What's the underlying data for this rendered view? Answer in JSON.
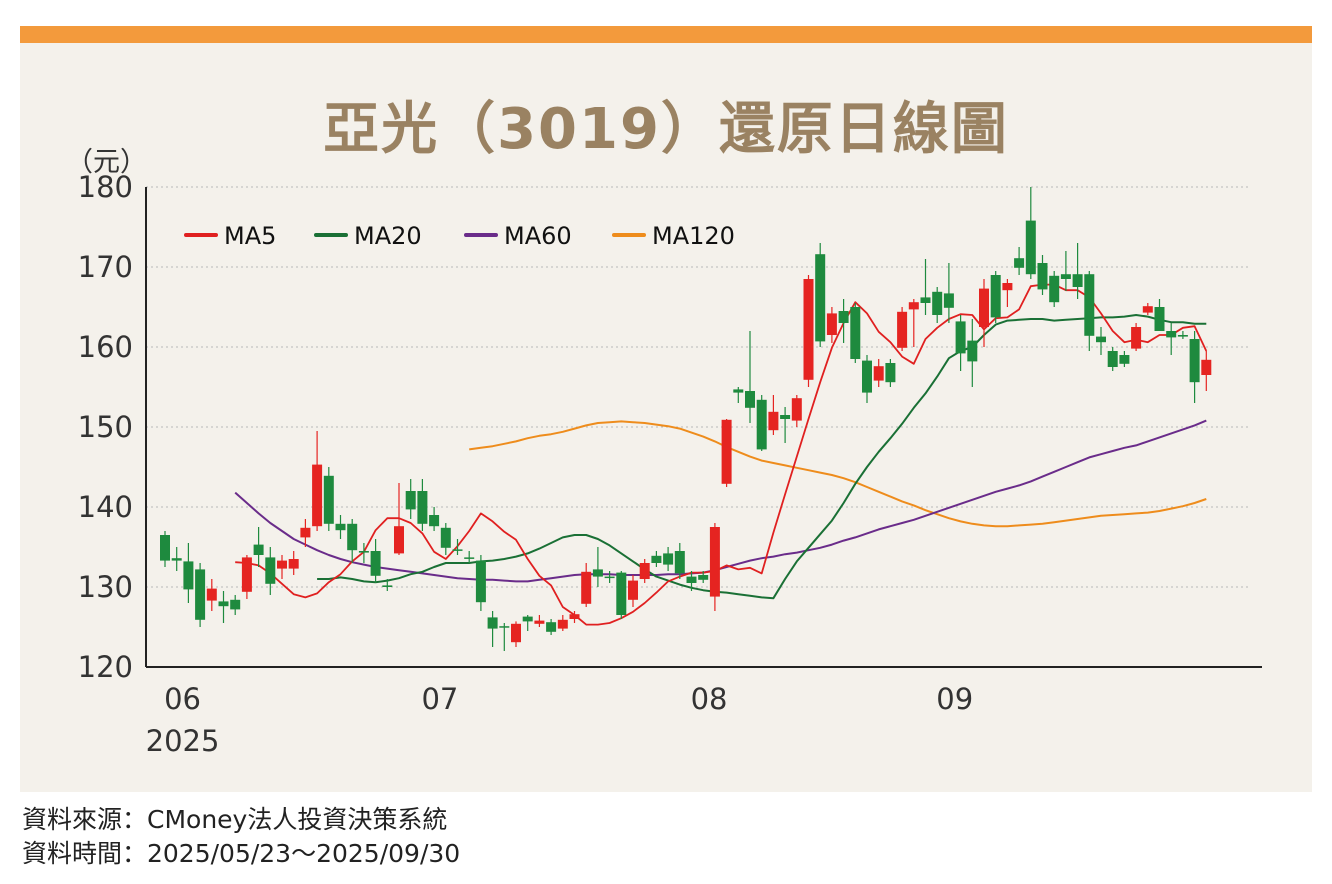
{
  "title": "亞光（3019）還原日線圖",
  "unit_label": "（元）",
  "source_line": "資料來源：CMoney法人投資決策系統",
  "period_line": "資料時間：2025/05/23～2025/09/30",
  "colors": {
    "up": "#e52421",
    "down": "#1e8a3e",
    "ma5": "#e02020",
    "ma20": "#1a7035",
    "ma60": "#6a2c8a",
    "ma120": "#ee8c1c",
    "header_bar": "#f39a3c",
    "panel": "#f4f1eb",
    "title": "#9a8262"
  },
  "chart_data": {
    "type": "candlestick",
    "title": "亞光（3019）還原日線圖",
    "ylabel": "（元）",
    "ylim": [
      120,
      180
    ],
    "yticks": [
      120,
      130,
      140,
      150,
      160,
      170,
      180
    ],
    "xticks": [
      {
        "label": "06",
        "sublabel": "2025",
        "index": 1.5
      },
      {
        "label": "07",
        "sublabel": "",
        "index": 23.5
      },
      {
        "label": "08",
        "sublabel": "",
        "index": 46.5
      },
      {
        "label": "09",
        "sublabel": "",
        "index": 67.5
      }
    ],
    "grid": "horizontal-dashed",
    "legend_position": "top-left",
    "legend": [
      "MA5",
      "MA20",
      "MA60",
      "MA120"
    ],
    "candles": [
      [
        136.5,
        133.3,
        137,
        132.5
      ],
      [
        133.6,
        133.3,
        135,
        132
      ],
      [
        133.2,
        129.7,
        135.5,
        128
      ],
      [
        132.2,
        125.9,
        133,
        125
      ],
      [
        128.3,
        129.8,
        131,
        127
      ],
      [
        128.2,
        127.6,
        129.5,
        125.5
      ],
      [
        128.4,
        127.2,
        129,
        126.5
      ],
      [
        129.4,
        133.7,
        134,
        128.5
      ],
      [
        135.3,
        134.0,
        137.5,
        132.5
      ],
      [
        133.7,
        130.4,
        135,
        129
      ],
      [
        132.3,
        133.3,
        134,
        131
      ],
      [
        132.3,
        133.5,
        134.5,
        131.5
      ],
      [
        136.2,
        137.4,
        138.5,
        135
      ],
      [
        137.6,
        145.3,
        149.5,
        137
      ],
      [
        143.9,
        137.9,
        145,
        137
      ],
      [
        137.9,
        137.1,
        139,
        136
      ],
      [
        137.9,
        134.6,
        138.5,
        133
      ],
      [
        134.5,
        134.3,
        135.5,
        133
      ],
      [
        134.5,
        131.4,
        136,
        130.5
      ],
      [
        130.2,
        130.0,
        131,
        129.5
      ],
      [
        134.2,
        137.6,
        143,
        134
      ],
      [
        142.0,
        139.7,
        143.5,
        138.5
      ],
      [
        142.0,
        137.9,
        143.5,
        137
      ],
      [
        139.0,
        137.6,
        140,
        137
      ],
      [
        137.4,
        134.9,
        138,
        134
      ],
      [
        134.7,
        134.6,
        136,
        134
      ],
      [
        133.7,
        133.6,
        134.5,
        133
      ],
      [
        133.3,
        128.1,
        134,
        127
      ],
      [
        126.2,
        124.8,
        127,
        122.5
      ],
      [
        125.1,
        125.0,
        125.5,
        122
      ],
      [
        123.1,
        125.4,
        125.7,
        122.5
      ],
      [
        126.3,
        125.7,
        126.5,
        124.5
      ],
      [
        125.4,
        125.8,
        126.5,
        125
      ],
      [
        125.6,
        124.4,
        126,
        124
      ],
      [
        124.8,
        125.9,
        126.5,
        124.5
      ],
      [
        126.0,
        126.6,
        127,
        125.5
      ],
      [
        127.9,
        131.9,
        133,
        127.5
      ],
      [
        132.2,
        131.3,
        135,
        130
      ],
      [
        131.3,
        131.2,
        132,
        130.5
      ],
      [
        131.8,
        126.5,
        132,
        126
      ],
      [
        128.4,
        130.8,
        131.5,
        127.5
      ],
      [
        131.0,
        133.0,
        133.5,
        130.5
      ],
      [
        133.9,
        133.0,
        134.5,
        132.5
      ],
      [
        134.2,
        132.8,
        135,
        132
      ],
      [
        134.5,
        131.7,
        135.5,
        131
      ],
      [
        131.3,
        130.5,
        132,
        129.5
      ],
      [
        131.5,
        130.9,
        132,
        130.5
      ],
      [
        128.8,
        137.5,
        138,
        127
      ],
      [
        142.9,
        150.9,
        151,
        142.5
      ],
      [
        154.7,
        154.3,
        155,
        153
      ],
      [
        154.5,
        152.4,
        162,
        150.5
      ],
      [
        153.4,
        147.2,
        154,
        147
      ],
      [
        149.6,
        151.9,
        154,
        149
      ],
      [
        151.5,
        151.0,
        152.5,
        148
      ],
      [
        150.8,
        153.6,
        154,
        150
      ],
      [
        155.9,
        168.5,
        169,
        155
      ],
      [
        171.6,
        160.7,
        173,
        160
      ],
      [
        161.5,
        164.2,
        165,
        160.5
      ],
      [
        164.5,
        163.0,
        166,
        160.5
      ],
      [
        165.0,
        158.5,
        165.5,
        158
      ],
      [
        158.3,
        154.3,
        159,
        153
      ],
      [
        155.8,
        157.6,
        158.5,
        155
      ],
      [
        158.0,
        155.6,
        158.5,
        155
      ],
      [
        159.9,
        164.4,
        165,
        159.5
      ],
      [
        164.7,
        165.6,
        166,
        160
      ],
      [
        166.2,
        165.5,
        171,
        164
      ],
      [
        166.9,
        164.0,
        167.5,
        163
      ],
      [
        166.7,
        164.9,
        170.5,
        163
      ],
      [
        163.2,
        159.2,
        164,
        157
      ],
      [
        160.8,
        158.2,
        163.5,
        155
      ],
      [
        162.5,
        167.3,
        168.5,
        160
      ],
      [
        169.0,
        163.7,
        169.5,
        163
      ],
      [
        167.1,
        168.0,
        168.5,
        165
      ],
      [
        171.1,
        169.9,
        172.5,
        169
      ],
      [
        175.8,
        169.1,
        180,
        168.5
      ],
      [
        170.5,
        167.2,
        171.5,
        166.5
      ],
      [
        168.9,
        165.6,
        169.5,
        165
      ],
      [
        169.1,
        168.5,
        172,
        167
      ],
      [
        169.1,
        167.5,
        173,
        166
      ],
      [
        169.1,
        161.4,
        169.5,
        159.5
      ],
      [
        161.3,
        160.6,
        162.5,
        159
      ],
      [
        159.5,
        157.5,
        160,
        157
      ],
      [
        159.0,
        157.9,
        159.5,
        157.5
      ],
      [
        159.8,
        162.5,
        163,
        159.5
      ],
      [
        164.3,
        165.1,
        165.5,
        164
      ],
      [
        165.0,
        162.0,
        166,
        162
      ],
      [
        162.0,
        161.2,
        163,
        159
      ],
      [
        161.5,
        161.3,
        162,
        161
      ],
      [
        161.0,
        155.6,
        162,
        153
      ],
      [
        156.5,
        158.4,
        159.5,
        154.5
      ]
    ],
    "ma5": [
      133.1,
      133.0,
      132.7,
      131.7,
      130.4,
      129.1,
      128.7,
      129.2,
      130.6,
      131.6,
      133.2,
      134.4,
      137.1,
      138.6,
      138.6,
      138.0,
      136.7,
      134.4,
      133.5,
      135.1,
      137.0,
      139.2,
      138.2,
      136.9,
      135.9,
      133.5,
      131.4,
      130.2,
      127.5,
      126.5,
      125.3,
      125.3,
      125.5,
      126.1,
      126.9,
      128.0,
      129.3,
      130.7,
      131.3,
      131.8,
      131.8,
      132.0,
      132.7,
      132.2,
      132.4,
      131.7,
      136.8,
      141.6,
      146.3,
      151.0,
      155.6,
      159.9,
      163.0,
      165.6,
      164.2,
      161.9,
      160.6,
      158.8,
      157.9,
      161.0,
      162.4,
      163.5,
      164.1,
      164.0,
      162.2,
      163.6,
      163.7,
      164.7,
      167.6,
      167.8,
      167.8,
      167.1,
      167.1,
      166.2,
      164.2,
      162.0,
      160.6,
      160.9,
      160.6,
      161.5,
      161.5,
      162.4,
      162.6,
      159.5
    ],
    "ma20": [
      131.0,
      131.0,
      131.2,
      131.0,
      130.7,
      130.6,
      130.8,
      131.1,
      131.6,
      131.9,
      132.5,
      133.0,
      133.0,
      133.0,
      133.2,
      133.3,
      133.5,
      133.8,
      134.2,
      134.8,
      135.5,
      136.2,
      136.5,
      136.5,
      136.0,
      135.2,
      134.2,
      133.2,
      132.2,
      131.3,
      130.8,
      130.3,
      129.9,
      129.6,
      129.4,
      129.3,
      129.1,
      128.9,
      128.7,
      128.6,
      131.0,
      133.2,
      134.9,
      136.6,
      138.3,
      140.5,
      142.9,
      145.0,
      146.9,
      148.6,
      150.4,
      152.4,
      154.2,
      156.3,
      158.6,
      159.5,
      160.0,
      161.5,
      162.8,
      163.3,
      163.4,
      163.5,
      163.5,
      163.3,
      163.4,
      163.5,
      163.6,
      163.7,
      163.7,
      163.8,
      164.0,
      163.8,
      163.4,
      163.1,
      163.1,
      162.9,
      162.9
    ],
    "ma60": [
      141.8,
      140.5,
      139.2,
      138.0,
      137.0,
      136.0,
      135.3,
      134.6,
      134.0,
      133.5,
      133.1,
      132.8,
      132.5,
      132.3,
      132.1,
      131.9,
      131.7,
      131.5,
      131.3,
      131.1,
      131.0,
      130.9,
      130.9,
      130.8,
      130.7,
      130.7,
      130.9,
      131.1,
      131.3,
      131.5,
      131.6,
      131.6,
      131.6,
      131.5,
      131.5,
      131.5,
      131.5,
      131.6,
      131.6,
      131.7,
      131.8,
      132.1,
      132.5,
      132.9,
      133.3,
      133.6,
      133.8,
      134.1,
      134.3,
      134.6,
      134.9,
      135.3,
      135.8,
      136.2,
      136.7,
      137.2,
      137.6,
      138.0,
      138.4,
      138.9,
      139.4,
      139.9,
      140.4,
      140.9,
      141.4,
      141.9,
      142.3,
      142.7,
      143.2,
      143.8,
      144.4,
      145.0,
      145.6,
      146.2,
      146.6,
      147.0,
      147.4,
      147.7,
      148.2,
      148.7,
      149.2,
      149.7,
      150.2,
      150.8
    ],
    "ma120": [
      147.2,
      147.4,
      147.6,
      147.9,
      148.2,
      148.6,
      148.9,
      149.1,
      149.4,
      149.8,
      150.2,
      150.5,
      150.6,
      150.7,
      150.6,
      150.5,
      150.3,
      150.1,
      149.8,
      149.3,
      148.8,
      148.2,
      147.5,
      146.9,
      146.3,
      145.8,
      145.5,
      145.2,
      144.9,
      144.6,
      144.3,
      144.0,
      143.6,
      143.1,
      142.5,
      141.9,
      141.3,
      140.7,
      140.2,
      139.6,
      139.1,
      138.6,
      138.2,
      137.9,
      137.7,
      137.6,
      137.6,
      137.7,
      137.8,
      137.9,
      138.1,
      138.3,
      138.5,
      138.7,
      138.9,
      139.0,
      139.1,
      139.2,
      139.3,
      139.5,
      139.8,
      140.1,
      140.5,
      141.0
    ]
  }
}
